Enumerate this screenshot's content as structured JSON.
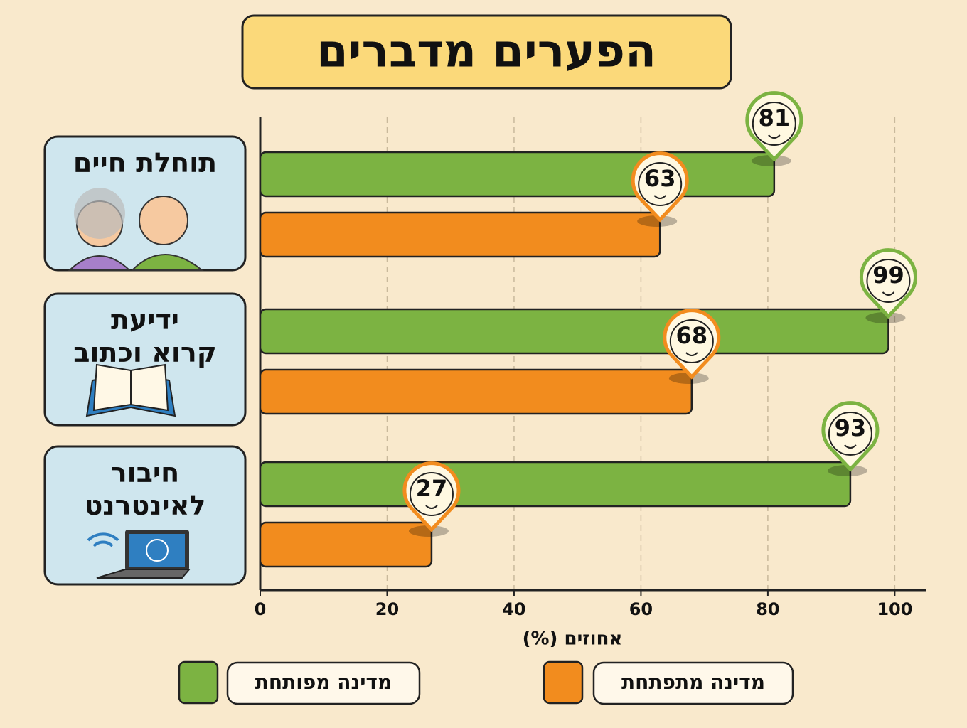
{
  "chart_data": {
    "type": "bar",
    "orientation": "horizontal",
    "title": "הפערים מדברים",
    "categories": [
      "תוחלת חיים",
      "ידיעת\nקרוא וכתוב",
      "חיבור\nלאינטרנט"
    ],
    "series": [
      {
        "name": "מדינה מפותחת",
        "color": "#7cb342",
        "values": [
          81,
          99,
          93
        ]
      },
      {
        "name": "מדינה מתפתחת",
        "color": "#f28c1e",
        "values": [
          63,
          68,
          27
        ]
      }
    ],
    "xlabel": "אחוזים (%)",
    "xlim": [
      0,
      105
    ],
    "xticks": [
      0,
      20,
      40,
      60,
      80,
      100
    ],
    "grid": true
  }
}
